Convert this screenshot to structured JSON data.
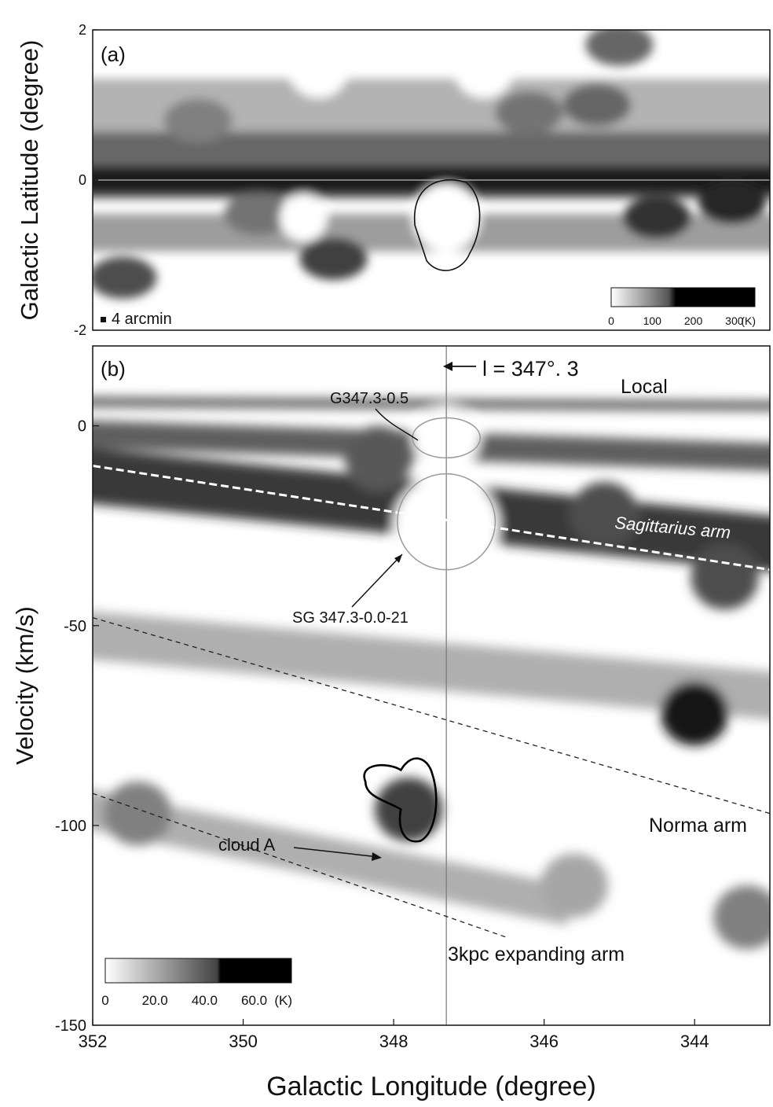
{
  "chart_data": [
    {
      "type": "heatmap",
      "panel_label": "(a)",
      "xlim": [
        352,
        343
      ],
      "ylim": [
        -2,
        2
      ],
      "ylabel": "Galactic Latitude (degree)",
      "yticks": [
        "2",
        "0",
        "-2"
      ],
      "scale_note": "4 arcmin",
      "colorbar": {
        "range": [
          0,
          350
        ],
        "ticks": [
          "0",
          "100",
          "200",
          "300"
        ],
        "unit": "(K)"
      },
      "emission_bands": [
        {
          "b_center": 0.2,
          "b_width": 0.9,
          "level": 0.7
        },
        {
          "b_center": 0.0,
          "b_width": 0.35,
          "level": 0.95
        },
        {
          "b_center": -0.7,
          "b_width": 0.5,
          "level": 0.45
        },
        {
          "b_center": 1.0,
          "b_width": 0.7,
          "level": 0.35
        }
      ],
      "clumps": [
        {
          "l": 351.6,
          "b": -1.3,
          "amp": 0.7
        },
        {
          "l": 348.8,
          "b": -1.05,
          "amp": 0.75
        },
        {
          "l": 349.8,
          "b": -0.45,
          "amp": 0.55
        },
        {
          "l": 345.0,
          "b": 1.8,
          "amp": 0.6
        },
        {
          "l": 345.3,
          "b": 1.0,
          "amp": 0.6
        },
        {
          "l": 344.5,
          "b": -0.5,
          "amp": 0.8
        },
        {
          "l": 343.5,
          "b": -0.3,
          "amp": 0.85
        },
        {
          "l": 350.6,
          "b": 0.8,
          "amp": 0.5
        },
        {
          "l": 346.2,
          "b": 0.9,
          "amp": 0.55
        }
      ],
      "voids": [
        {
          "l": 347.3,
          "b": -0.5,
          "r": 0.5
        },
        {
          "l": 349.2,
          "b": -0.5,
          "r": 0.35
        },
        {
          "l": 349.0,
          "b": 1.5,
          "r": 0.45
        },
        {
          "l": 346.8,
          "b": 1.5,
          "r": 0.45
        }
      ],
      "outlined_region": {
        "l": 347.3,
        "b": -0.5
      }
    },
    {
      "type": "heatmap",
      "panel_label": "(b)",
      "xlabel": "Galactic Longitude (degree)",
      "ylabel": "Velocity (km/s)",
      "xlim": [
        352,
        343
      ],
      "ylim": [
        -150,
        20
      ],
      "xticks": [
        "352",
        "350",
        "348",
        "346",
        "344"
      ],
      "yticks": [
        "0",
        "-50",
        "-100",
        "-150"
      ],
      "colorbar": {
        "range": [
          0,
          75
        ],
        "ticks": [
          "0",
          "20.0",
          "40.0",
          "60.0"
        ],
        "unit": "(K)"
      },
      "marker_line": {
        "l": 347.3,
        "label": "l = 347°. 3"
      },
      "emission_bands": [
        {
          "l1": 352,
          "v1": -12,
          "l2": 343,
          "v2": -30,
          "width": 14,
          "level": 0.85
        },
        {
          "l1": 352,
          "v1": -2,
          "l2": 343,
          "v2": -8,
          "width": 7,
          "level": 0.7
        },
        {
          "l1": 352,
          "v1": 6,
          "l2": 343,
          "v2": 5,
          "width": 2.5,
          "level": 0.7
        },
        {
          "l1": 352,
          "v1": -52,
          "l2": 343,
          "v2": -68,
          "width": 12,
          "level": 0.35
        },
        {
          "l1": 352,
          "v1": -95,
          "l2": 346,
          "v2": -120,
          "width": 10,
          "level": 0.35
        }
      ],
      "clumps": [
        {
          "l": 344.0,
          "v": -72,
          "amp": 0.9
        },
        {
          "l": 347.8,
          "v": -96,
          "amp": 0.75
        },
        {
          "l": 348.2,
          "v": -8,
          "amp": 0.65
        },
        {
          "l": 351.4,
          "v": -97,
          "amp": 0.5
        },
        {
          "l": 345.2,
          "v": -22,
          "amp": 0.7
        },
        {
          "l": 343.6,
          "v": -38,
          "amp": 0.7
        },
        {
          "l": 343.3,
          "v": -123,
          "amp": 0.5
        },
        {
          "l": 345.6,
          "v": -115,
          "amp": 0.35
        }
      ],
      "voids": [
        {
          "l": 347.3,
          "v": -25,
          "r": 0.7
        },
        {
          "l": 347.3,
          "v": -3,
          "r": 0.45
        }
      ],
      "annotations": [
        {
          "text": "Local"
        },
        {
          "text": "G347.3-0.5",
          "ellipse": {
            "l": 347.3,
            "v": -3,
            "rl": 0.45,
            "rv": 5
          }
        },
        {
          "text": "SG 347.3-0.0-21",
          "circle": {
            "l": 347.3,
            "v": -24,
            "rl": 0.65,
            "rv": 12
          }
        },
        {
          "text": "Sagittarius arm",
          "line": {
            "l1": 352,
            "v1": -10,
            "l2": 343,
            "v2": -36
          }
        },
        {
          "text": "Norma arm",
          "line": {
            "l1": 352,
            "v1": -48,
            "l2": 343,
            "v2": -97
          }
        },
        {
          "text": "3kpc expanding arm",
          "line": {
            "l1": 352,
            "v1": -92,
            "l2": 346.5,
            "v2": -128
          }
        },
        {
          "text": "cloud A",
          "region": {
            "l": 347.8,
            "v": -95
          }
        }
      ]
    }
  ]
}
